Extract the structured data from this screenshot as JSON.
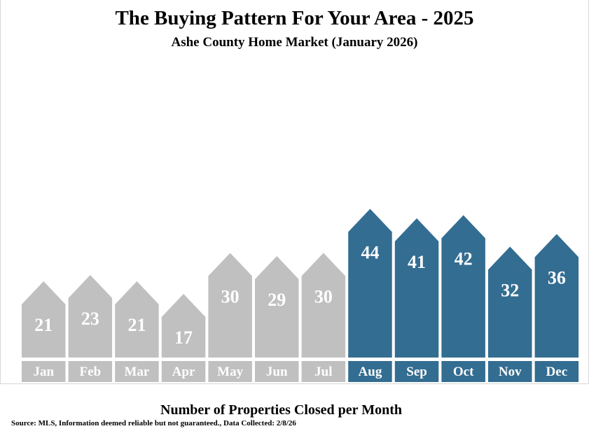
{
  "title": "The Buying Pattern For Your Area - 2025",
  "subtitle": "Ashe County Home Market (January 2026)",
  "footer_label": "Number of Properties Closed per Month",
  "source": "Source: MLS, Information deemed reliable but not guaranteed., Data Collected: 2/8/26",
  "colors": {
    "muted": "#c0c0c0",
    "highlight": "#336d91",
    "label_text": "#ffffff"
  },
  "chart_data": {
    "type": "bar",
    "categories": [
      "Jan",
      "Feb",
      "Mar",
      "Apr",
      "May",
      "Jun",
      "Jul",
      "Aug",
      "Sep",
      "Oct",
      "Nov",
      "Dec"
    ],
    "values": [
      21,
      23,
      21,
      17,
      30,
      29,
      30,
      44,
      41,
      42,
      32,
      36
    ],
    "highlighted": [
      false,
      false,
      false,
      false,
      false,
      false,
      false,
      true,
      true,
      true,
      true,
      true
    ],
    "title": "The Buying Pattern For Your Area - 2025",
    "xlabel": "Number of Properties Closed per Month",
    "ylabel": "",
    "grid": false
  }
}
